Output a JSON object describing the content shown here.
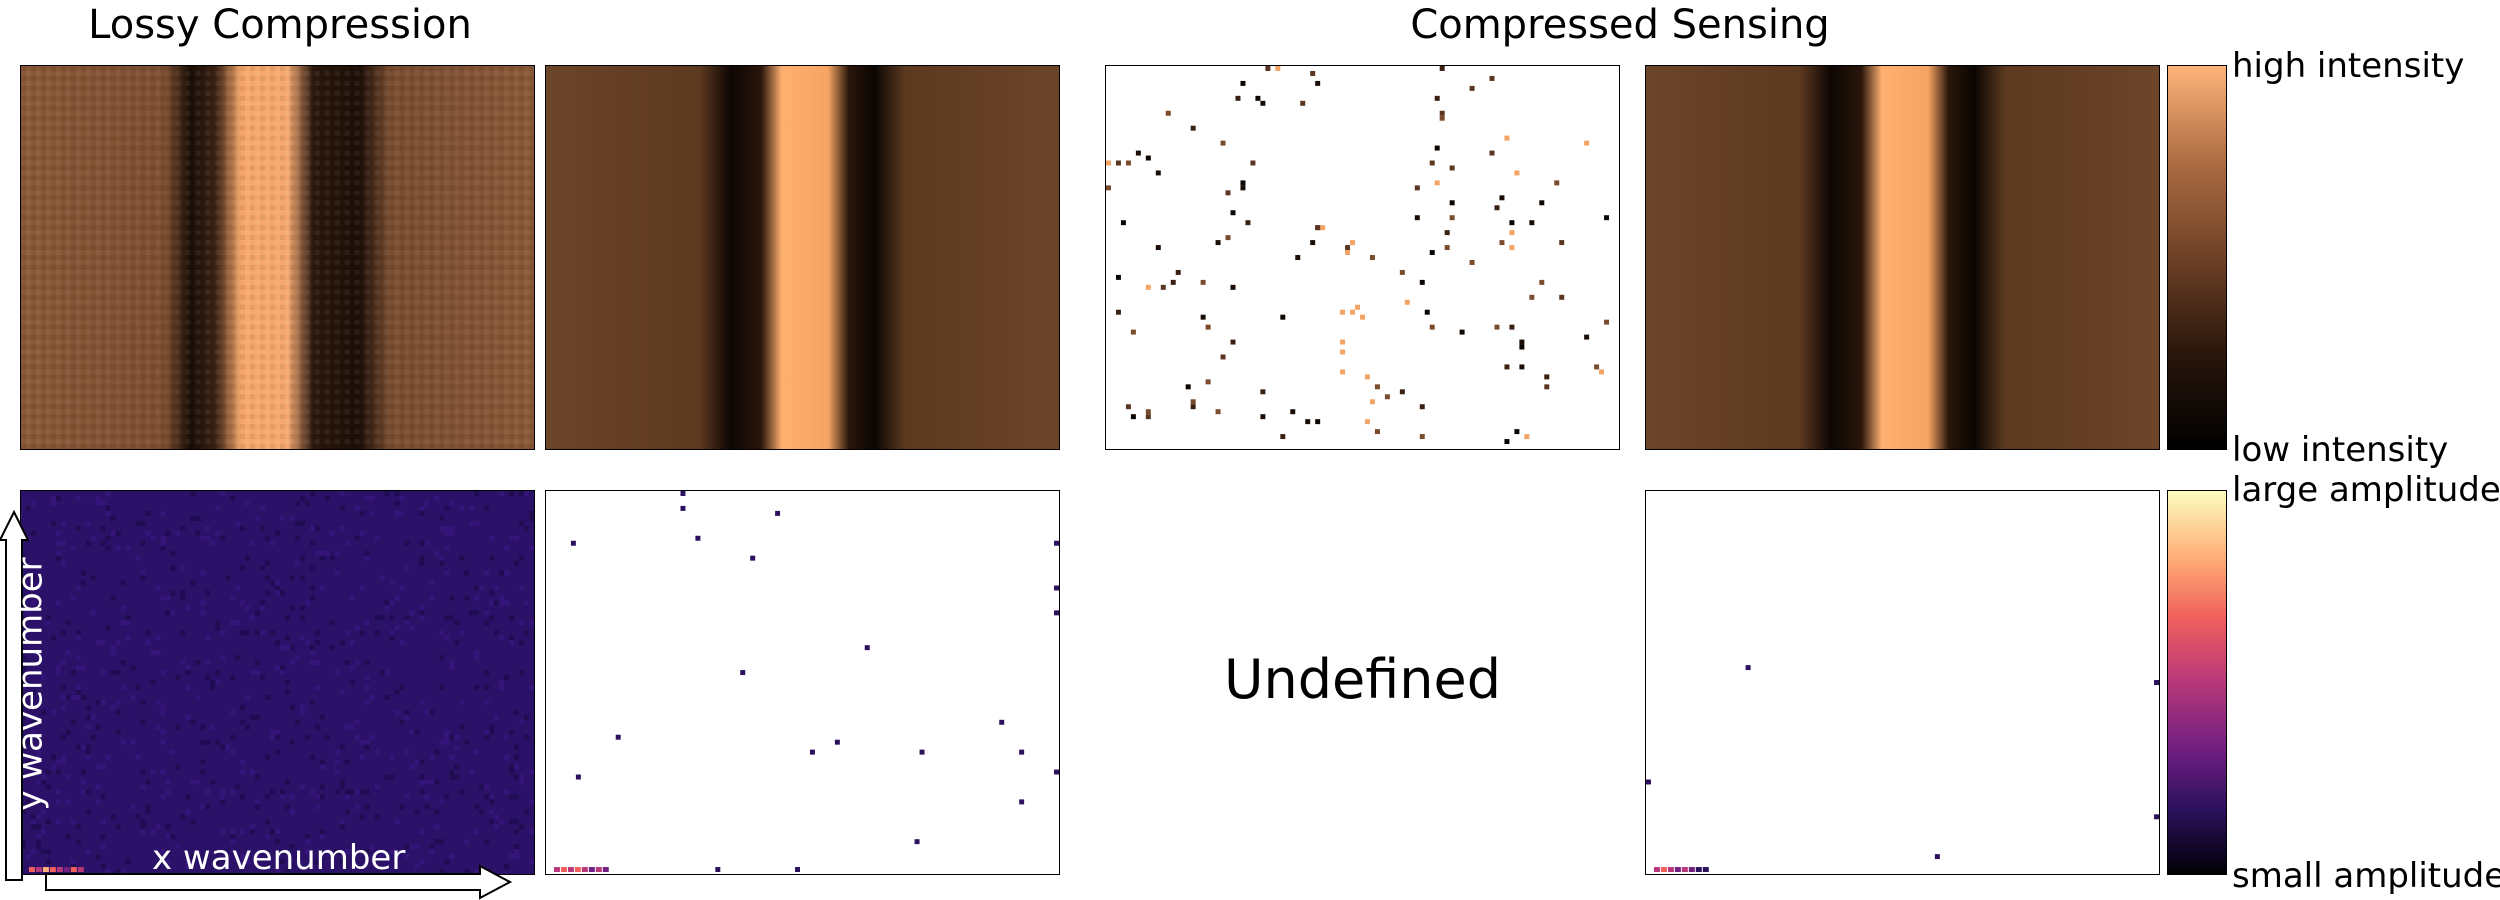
{
  "titles": {
    "left": "Lossy Compression",
    "right": "Compressed Sensing"
  },
  "colorbars": {
    "intensity": {
      "top": "high intensity",
      "bottom": "low intensity",
      "stops": [
        "#000000",
        "#2a160c",
        "#6e4126",
        "#ad6c43",
        "#ffb47a"
      ]
    },
    "amplitude": {
      "top": "large amplitude",
      "bottom": "small amplitude",
      "stops": [
        "#000004",
        "#2c115f",
        "#721f81",
        "#b73779",
        "#f1605d",
        "#feb078",
        "#fcfdbf"
      ]
    }
  },
  "undefined_label": "Undefined",
  "axes": {
    "x": "x wavenumber",
    "y": "y wavenumber"
  },
  "panels": [
    "noisy-image",
    "compressed-image",
    "sampled-pixels",
    "reconstructed-image",
    "noisy-spectrum",
    "sparse-spectrum",
    "undefined",
    "reconstructed-spectrum"
  ]
}
